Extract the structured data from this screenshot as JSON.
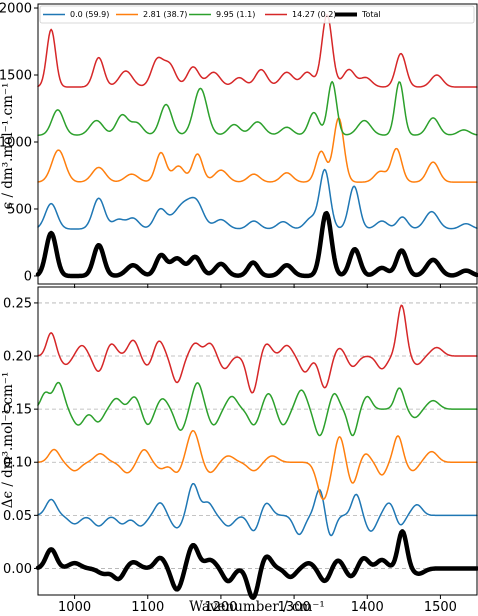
{
  "chart_data": [
    {
      "type": "line",
      "panel": "top",
      "ylabel": "ϵ / dm³.mol⁻¹.cm⁻¹",
      "ylim": [
        -60,
        2030
      ],
      "yticks": [
        "0",
        "500",
        "1000",
        "1500",
        "2000"
      ],
      "xlim": [
        950,
        1550
      ],
      "legend": {
        "placement": "top",
        "entries": [
          "0.0 (59.9)",
          "2.81 (38.7)",
          "9.95 (1.1)",
          "14.27 (0.2)",
          "Total"
        ]
      },
      "series": [
        {
          "name": "0.0 (59.9)",
          "color": "#1f77b4",
          "baseline": 350,
          "peaks": [
            [
              968,
              190,
              8
            ],
            [
              1033,
              230,
              8
            ],
            [
              1060,
              70,
              8
            ],
            [
              1080,
              80,
              8
            ],
            [
              1117,
              140,
              8
            ],
            [
              1150,
              190,
              14
            ],
            [
              1168,
              130,
              9
            ],
            [
              1200,
              70,
              9
            ],
            [
              1245,
              60,
              8
            ],
            [
              1285,
              55,
              8
            ],
            [
              1323,
              80,
              8
            ],
            [
              1342,
              440,
              7
            ],
            [
              1382,
              320,
              7
            ],
            [
              1420,
              60,
              8
            ],
            [
              1448,
              90,
              7
            ],
            [
              1488,
              130,
              9
            ],
            [
              1535,
              40,
              8
            ]
          ]
        },
        {
          "name": "2.81 (38.7)",
          "color": "#ff7f0e",
          "baseline": 700,
          "peaks": [
            [
              978,
              240,
              9
            ],
            [
              1033,
              110,
              9
            ],
            [
              1078,
              60,
              9
            ],
            [
              1118,
              220,
              7
            ],
            [
              1142,
              120,
              8
            ],
            [
              1168,
              210,
              7
            ],
            [
              1200,
              90,
              9
            ],
            [
              1245,
              60,
              8
            ],
            [
              1290,
              70,
              8
            ],
            [
              1337,
              230,
              7
            ],
            [
              1361,
              480,
              7
            ],
            [
              1418,
              80,
              8
            ],
            [
              1440,
              250,
              7
            ],
            [
              1490,
              150,
              8
            ]
          ]
        },
        {
          "name": "9.95 (1.1)",
          "color": "#2ca02c",
          "baseline": 1050,
          "peaks": [
            [
              977,
              190,
              8
            ],
            [
              1030,
              110,
              9
            ],
            [
              1065,
              150,
              8
            ],
            [
              1085,
              90,
              8
            ],
            [
              1125,
              230,
              8
            ],
            [
              1172,
              350,
              9
            ],
            [
              1218,
              80,
              8
            ],
            [
              1250,
              100,
              9
            ],
            [
              1290,
              60,
              8
            ],
            [
              1327,
              170,
              7
            ],
            [
              1352,
              400,
              6
            ],
            [
              1396,
              110,
              9
            ],
            [
              1444,
              400,
              6
            ],
            [
              1490,
              130,
              8
            ],
            [
              1532,
              40,
              8
            ]
          ]
        },
        {
          "name": "14.27 (0.2)",
          "color": "#d62728",
          "baseline": 1410,
          "peaks": [
            [
              968,
              430,
              6
            ],
            [
              1033,
              220,
              7
            ],
            [
              1070,
              120,
              9
            ],
            [
              1113,
              200,
              8
            ],
            [
              1130,
              160,
              8
            ],
            [
              1162,
              150,
              8
            ],
            [
              1190,
              110,
              9
            ],
            [
              1225,
              70,
              8
            ],
            [
              1255,
              130,
              8
            ],
            [
              1290,
              110,
              9
            ],
            [
              1318,
              110,
              8
            ],
            [
              1345,
              540,
              7
            ],
            [
              1375,
              130,
              8
            ],
            [
              1398,
              70,
              8
            ],
            [
              1446,
              250,
              7
            ],
            [
              1495,
              90,
              8
            ]
          ]
        },
        {
          "name": "Total",
          "color": "#000000",
          "baseline": 0,
          "peaks": [
            [
              968,
              320,
              7
            ],
            [
              1033,
              230,
              7
            ],
            [
              1080,
              80,
              9
            ],
            [
              1118,
              150,
              7
            ],
            [
              1140,
              130,
              9
            ],
            [
              1165,
              140,
              8
            ],
            [
              1200,
              90,
              8
            ],
            [
              1244,
              100,
              7
            ],
            [
              1290,
              80,
              8
            ],
            [
              1344,
              470,
              7
            ],
            [
              1383,
              200,
              7
            ],
            [
              1420,
              60,
              8
            ],
            [
              1447,
              190,
              7
            ],
            [
              1490,
              120,
              9
            ],
            [
              1535,
              40,
              8
            ]
          ]
        }
      ]
    },
    {
      "type": "line",
      "panel": "bottom",
      "xlabel": "Wavenumber / cm⁻¹",
      "ylabel": "Δϵ / dm³.mol⁻¹.cm⁻¹",
      "ylim": [
        -0.025,
        0.265
      ],
      "yticks": [
        "0.00",
        "0.05",
        "0.10",
        "0.15",
        "0.20",
        "0.25"
      ],
      "xlim": [
        950,
        1550
      ],
      "xticks": [
        "1000",
        "1100",
        "1200",
        "1300",
        "1400",
        "1500"
      ],
      "grid": "horizontal dashed",
      "series": [
        {
          "name": "0.0 (59.9)",
          "color": "#1f77b4",
          "baseline": 0.05,
          "peaks": [
            [
              968,
              0.015,
              7
            ],
            [
              1000,
              -0.008,
              8
            ],
            [
              1033,
              -0.01,
              8
            ],
            [
              1065,
              -0.008,
              7
            ],
            [
              1090,
              -0.01,
              8
            ],
            [
              1117,
              0.012,
              7
            ],
            [
              1140,
              -0.012,
              8
            ],
            [
              1162,
              0.03,
              7
            ],
            [
              1182,
              0.012,
              7
            ],
            [
              1210,
              -0.01,
              8
            ],
            [
              1245,
              -0.015,
              7
            ],
            [
              1262,
              0.012,
              7
            ],
            [
              1307,
              -0.018,
              7
            ],
            [
              1335,
              0.025,
              6
            ],
            [
              1350,
              -0.02,
              6
            ],
            [
              1385,
              0.02,
              6
            ],
            [
              1405,
              -0.015,
              7
            ],
            [
              1430,
              0.012,
              7
            ],
            [
              1445,
              -0.01,
              6
            ],
            [
              1468,
              0.01,
              7
            ]
          ]
        },
        {
          "name": "2.81 (38.7)",
          "color": "#ff7f0e",
          "baseline": 0.1,
          "peaks": [
            [
              972,
              0.012,
              7
            ],
            [
              1000,
              -0.008,
              8
            ],
            [
              1035,
              0.008,
              8
            ],
            [
              1072,
              -0.01,
              8
            ],
            [
              1095,
              0.012,
              7
            ],
            [
              1118,
              -0.006,
              7
            ],
            [
              1140,
              -0.01,
              7
            ],
            [
              1162,
              0.03,
              8
            ],
            [
              1185,
              -0.01,
              8
            ],
            [
              1210,
              0.006,
              8
            ],
            [
              1245,
              -0.008,
              8
            ],
            [
              1270,
              0.006,
              8
            ],
            [
              1340,
              -0.035,
              8
            ],
            [
              1362,
              0.025,
              6
            ],
            [
              1380,
              -0.02,
              6
            ],
            [
              1398,
              0.008,
              6
            ],
            [
              1420,
              -0.012,
              6
            ],
            [
              1442,
              0.025,
              6
            ],
            [
              1462,
              -0.008,
              7
            ],
            [
              1488,
              0.01,
              8
            ]
          ]
        },
        {
          "name": "9.95 (1.1)",
          "color": "#2ca02c",
          "baseline": 0.15,
          "peaks": [
            [
              960,
              0.015,
              6
            ],
            [
              978,
              0.025,
              7
            ],
            [
              1005,
              -0.015,
              8
            ],
            [
              1032,
              -0.012,
              7
            ],
            [
              1057,
              0.01,
              7
            ],
            [
              1082,
              0.012,
              7
            ],
            [
              1100,
              -0.015,
              7
            ],
            [
              1120,
              0.01,
              7
            ],
            [
              1145,
              -0.02,
              7
            ],
            [
              1168,
              0.025,
              7
            ],
            [
              1190,
              -0.015,
              7
            ],
            [
              1215,
              0.012,
              7
            ],
            [
              1245,
              -0.015,
              7
            ],
            [
              1265,
              0.015,
              7
            ],
            [
              1285,
              -0.015,
              7
            ],
            [
              1310,
              0.018,
              7
            ],
            [
              1335,
              -0.025,
              7
            ],
            [
              1355,
              0.015,
              6
            ],
            [
              1380,
              -0.025,
              6
            ],
            [
              1400,
              0.012,
              6
            ],
            [
              1444,
              0.02,
              6
            ],
            [
              1465,
              -0.008,
              7
            ],
            [
              1490,
              0.008,
              8
            ]
          ]
        },
        {
          "name": "14.27 (0.2)",
          "color": "#d62728",
          "baseline": 0.2,
          "peaks": [
            [
              968,
              0.022,
              6
            ],
            [
              988,
              -0.008,
              7
            ],
            [
              1010,
              0.01,
              7
            ],
            [
              1033,
              -0.015,
              7
            ],
            [
              1050,
              0.012,
              7
            ],
            [
              1080,
              0.015,
              7
            ],
            [
              1100,
              -0.01,
              7
            ],
            [
              1115,
              0.015,
              7
            ],
            [
              1140,
              -0.025,
              7
            ],
            [
              1165,
              0.012,
              7
            ],
            [
              1185,
              0.012,
              7
            ],
            [
              1205,
              -0.012,
              7
            ],
            [
              1243,
              -0.035,
              7
            ],
            [
              1262,
              0.012,
              7
            ],
            [
              1290,
              0.01,
              7
            ],
            [
              1315,
              -0.015,
              7
            ],
            [
              1342,
              -0.03,
              7
            ],
            [
              1362,
              0.008,
              7
            ],
            [
              1380,
              -0.01,
              7
            ],
            [
              1420,
              -0.012,
              7
            ],
            [
              1447,
              0.048,
              6
            ],
            [
              1468,
              -0.008,
              7
            ],
            [
              1495,
              0.008,
              8
            ]
          ]
        },
        {
          "name": "Total",
          "color": "#000000",
          "baseline": 0.0,
          "peaks": [
            [
              968,
              0.018,
              7
            ],
            [
              1000,
              0.005,
              8
            ],
            [
              1040,
              -0.005,
              8
            ],
            [
              1060,
              -0.01,
              7
            ],
            [
              1080,
              0.006,
              8
            ],
            [
              1117,
              0.01,
              7
            ],
            [
              1140,
              -0.02,
              7
            ],
            [
              1162,
              0.022,
              7
            ],
            [
              1185,
              0.008,
              8
            ],
            [
              1210,
              -0.012,
              7
            ],
            [
              1244,
              -0.028,
              7
            ],
            [
              1262,
              0.012,
              7
            ],
            [
              1295,
              -0.008,
              7
            ],
            [
              1320,
              0.005,
              7
            ],
            [
              1342,
              -0.012,
              7
            ],
            [
              1360,
              0.008,
              7
            ],
            [
              1378,
              -0.008,
              7
            ],
            [
              1395,
              0.01,
              7
            ],
            [
              1420,
              0.008,
              7
            ],
            [
              1448,
              0.035,
              6
            ],
            [
              1470,
              -0.005,
              8
            ]
          ]
        }
      ]
    }
  ]
}
